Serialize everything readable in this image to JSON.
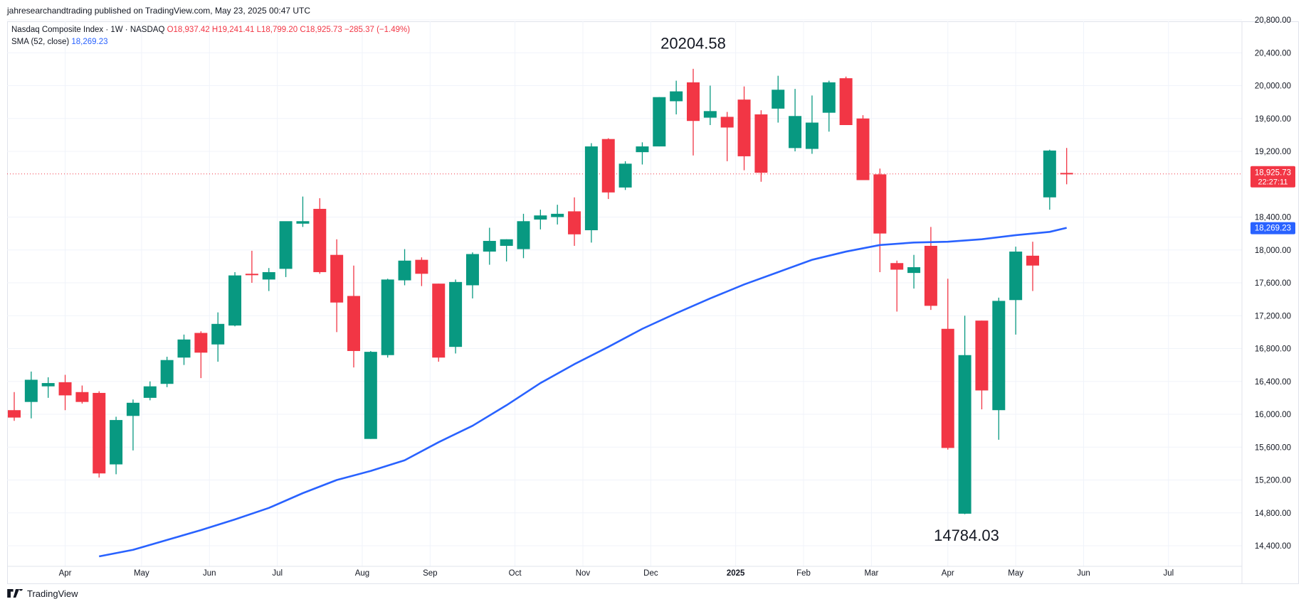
{
  "header": {
    "published": "jahresearchandtrading published on TradingView.com, May 23, 2025 00:47 UTC"
  },
  "legend": {
    "symbol": "Nasdaq Composite Index · 1W · NASDAQ",
    "open": "O18,937.42",
    "high": "H19,241.41",
    "low": "L18,799.20",
    "close": "C18,925.73",
    "change": "−285.37 (−1.49%)",
    "sma_label": "SMA (52, close)",
    "sma_value": "18,269.23"
  },
  "price_tags": {
    "last_price": "18,925.73",
    "countdown": "22:27:11",
    "sma_price": "18,269.23"
  },
  "footer": {
    "logo_text": "TradingView"
  },
  "colors": {
    "up": "#089981",
    "down": "#f23645",
    "sma": "#2962ff",
    "grid": "#f0f3fa",
    "axis_text": "#131722"
  },
  "chart_data": {
    "type": "candlestick",
    "interval": "1W",
    "ylim": [
      14300,
      20900
    ],
    "y_ticks": [
      14400,
      14800,
      15200,
      15600,
      16000,
      16400,
      16800,
      17200,
      17600,
      18000,
      18400,
      19200,
      19600,
      20000,
      20400,
      20800
    ],
    "y_tick_labels": [
      "14,400.00",
      "14,800.00",
      "15,200.00",
      "15,600.00",
      "16,000.00",
      "16,400.00",
      "16,800.00",
      "17,200.00",
      "17,600.00",
      "18,000.00",
      "18,400.00",
      "19,200.00",
      "19,600.00",
      "20,000.00",
      "20,400.00",
      "20,800.00"
    ],
    "x_labels": [
      {
        "label": "Apr",
        "bar": 3
      },
      {
        "label": "May",
        "bar": 7.5
      },
      {
        "label": "Jun",
        "bar": 11.5
      },
      {
        "label": "Jul",
        "bar": 15.5
      },
      {
        "label": "Aug",
        "bar": 20.5
      },
      {
        "label": "Sep",
        "bar": 24.5
      },
      {
        "label": "Oct",
        "bar": 29.5
      },
      {
        "label": "Nov",
        "bar": 33.5
      },
      {
        "label": "Dec",
        "bar": 37.5
      },
      {
        "label": "2025",
        "bar": 42.5
      },
      {
        "label": "Feb",
        "bar": 46.5
      },
      {
        "label": "Mar",
        "bar": 50.5
      },
      {
        "label": "Apr",
        "bar": 55
      },
      {
        "label": "May",
        "bar": 59
      },
      {
        "label": "Jun",
        "bar": 63
      },
      {
        "label": "Jul",
        "bar": 68
      }
    ],
    "candles": [
      {
        "o": 16050,
        "h": 16270,
        "l": 15920,
        "c": 15960
      },
      {
        "o": 16150,
        "h": 16520,
        "l": 15950,
        "c": 16420
      },
      {
        "o": 16340,
        "h": 16450,
        "l": 16200,
        "c": 16380
      },
      {
        "o": 16390,
        "h": 16480,
        "l": 16050,
        "c": 16230
      },
      {
        "o": 16270,
        "h": 16350,
        "l": 16130,
        "c": 16150
      },
      {
        "o": 16260,
        "h": 16280,
        "l": 15230,
        "c": 15280
      },
      {
        "o": 15390,
        "h": 15970,
        "l": 15270,
        "c": 15930
      },
      {
        "o": 15980,
        "h": 16180,
        "l": 15560,
        "c": 16140
      },
      {
        "o": 16200,
        "h": 16400,
        "l": 16170,
        "c": 16340
      },
      {
        "o": 16370,
        "h": 16700,
        "l": 16330,
        "c": 16660
      },
      {
        "o": 16690,
        "h": 16970,
        "l": 16600,
        "c": 16910
      },
      {
        "o": 16990,
        "h": 17010,
        "l": 16440,
        "c": 16750
      },
      {
        "o": 16850,
        "h": 17240,
        "l": 16640,
        "c": 17100
      },
      {
        "o": 17080,
        "h": 17730,
        "l": 17070,
        "c": 17690
      },
      {
        "o": 17710,
        "h": 17990,
        "l": 17600,
        "c": 17700
      },
      {
        "o": 17640,
        "h": 17780,
        "l": 17500,
        "c": 17730
      },
      {
        "o": 17770,
        "h": 18320,
        "l": 17670,
        "c": 18350
      },
      {
        "o": 18320,
        "h": 18650,
        "l": 18280,
        "c": 18350
      },
      {
        "o": 18500,
        "h": 18630,
        "l": 17710,
        "c": 17730
      },
      {
        "o": 17940,
        "h": 18130,
        "l": 17000,
        "c": 17360
      },
      {
        "o": 17440,
        "h": 17810,
        "l": 16570,
        "c": 16770
      },
      {
        "o": 15700,
        "h": 16770,
        "l": 15700,
        "c": 16760
      },
      {
        "o": 16720,
        "h": 17650,
        "l": 16690,
        "c": 17640
      },
      {
        "o": 17630,
        "h": 18010,
        "l": 17570,
        "c": 17870
      },
      {
        "o": 17880,
        "h": 17910,
        "l": 17560,
        "c": 17710
      },
      {
        "o": 17590,
        "h": 17590,
        "l": 16640,
        "c": 16690
      },
      {
        "o": 16820,
        "h": 17640,
        "l": 16740,
        "c": 17610
      },
      {
        "o": 17570,
        "h": 17970,
        "l": 17410,
        "c": 17950
      },
      {
        "o": 17980,
        "h": 18270,
        "l": 17820,
        "c": 18110
      },
      {
        "o": 18050,
        "h": 18130,
        "l": 17860,
        "c": 18130
      },
      {
        "o": 18010,
        "h": 18440,
        "l": 17900,
        "c": 18350
      },
      {
        "o": 18370,
        "h": 18490,
        "l": 18250,
        "c": 18420
      },
      {
        "o": 18400,
        "h": 18550,
        "l": 18310,
        "c": 18440
      },
      {
        "o": 18470,
        "h": 18640,
        "l": 18050,
        "c": 18190
      },
      {
        "o": 18240,
        "h": 19300,
        "l": 18090,
        "c": 19260
      },
      {
        "o": 19350,
        "h": 19360,
        "l": 18620,
        "c": 18700
      },
      {
        "o": 18760,
        "h": 19080,
        "l": 18730,
        "c": 19050
      },
      {
        "o": 19190,
        "h": 19310,
        "l": 19040,
        "c": 19260
      },
      {
        "o": 19260,
        "h": 19860,
        "l": 19260,
        "c": 19860
      },
      {
        "o": 19810,
        "h": 20060,
        "l": 19650,
        "c": 19930
      },
      {
        "o": 20040,
        "h": 20204.58,
        "l": 19150,
        "c": 19570
      },
      {
        "o": 19610,
        "h": 20000,
        "l": 19520,
        "c": 19690
      },
      {
        "o": 19620,
        "h": 19680,
        "l": 19080,
        "c": 19490
      },
      {
        "o": 19830,
        "h": 19990,
        "l": 18970,
        "c": 19140
      },
      {
        "o": 19650,
        "h": 19700,
        "l": 18830,
        "c": 18940
      },
      {
        "o": 19720,
        "h": 20120,
        "l": 19550,
        "c": 19950
      },
      {
        "o": 19240,
        "h": 19960,
        "l": 19200,
        "c": 19630
      },
      {
        "o": 19230,
        "h": 19880,
        "l": 19170,
        "c": 19550
      },
      {
        "o": 19670,
        "h": 20060,
        "l": 19440,
        "c": 20040
      },
      {
        "o": 20090,
        "h": 20110,
        "l": 19530,
        "c": 19520
      },
      {
        "o": 19600,
        "h": 19640,
        "l": 18880,
        "c": 18850
      },
      {
        "o": 18920,
        "h": 18990,
        "l": 17730,
        "c": 18200
      },
      {
        "o": 17840,
        "h": 17870,
        "l": 17250,
        "c": 17760
      },
      {
        "o": 17720,
        "h": 17940,
        "l": 17530,
        "c": 17790
      },
      {
        "o": 18050,
        "h": 18280,
        "l": 17270,
        "c": 17320
      },
      {
        "o": 17040,
        "h": 17650,
        "l": 15570,
        "c": 15590
      },
      {
        "o": 14790,
        "h": 17200,
        "l": 14784.03,
        "c": 16720
      },
      {
        "o": 17140,
        "h": 17140,
        "l": 16060,
        "c": 16290
      },
      {
        "o": 16050,
        "h": 17420,
        "l": 15690,
        "c": 17380
      },
      {
        "o": 17390,
        "h": 18040,
        "l": 16970,
        "c": 17980
      },
      {
        "o": 17930,
        "h": 18100,
        "l": 17500,
        "c": 17810
      },
      {
        "o": 18640,
        "h": 19220,
        "l": 18490,
        "c": 19210
      },
      {
        "o": 18937.42,
        "h": 19241.41,
        "l": 18799.2,
        "c": 18925.73
      }
    ],
    "sma": {
      "name": "SMA (52, close)",
      "points": [
        [
          5,
          14270
        ],
        [
          7,
          14350
        ],
        [
          9,
          14470
        ],
        [
          11,
          14590
        ],
        [
          13,
          14720
        ],
        [
          15,
          14860
        ],
        [
          17,
          15040
        ],
        [
          19,
          15200
        ],
        [
          21,
          15310
        ],
        [
          23,
          15440
        ],
        [
          25,
          15660
        ],
        [
          27,
          15860
        ],
        [
          29,
          16110
        ],
        [
          31,
          16380
        ],
        [
          33,
          16610
        ],
        [
          35,
          16820
        ],
        [
          37,
          17040
        ],
        [
          39,
          17230
        ],
        [
          41,
          17410
        ],
        [
          43,
          17580
        ],
        [
          45,
          17730
        ],
        [
          47,
          17880
        ],
        [
          49,
          17980
        ],
        [
          51,
          18060
        ],
        [
          53,
          18090
        ],
        [
          55,
          18100
        ],
        [
          57,
          18130
        ],
        [
          59,
          18180
        ],
        [
          61,
          18220
        ],
        [
          62,
          18269.23
        ]
      ]
    },
    "annotations": [
      {
        "text": "20204.58",
        "bar": 40,
        "y": 20450
      },
      {
        "text": "14784.03",
        "bar": 56.1,
        "y": 14460
      }
    ]
  }
}
